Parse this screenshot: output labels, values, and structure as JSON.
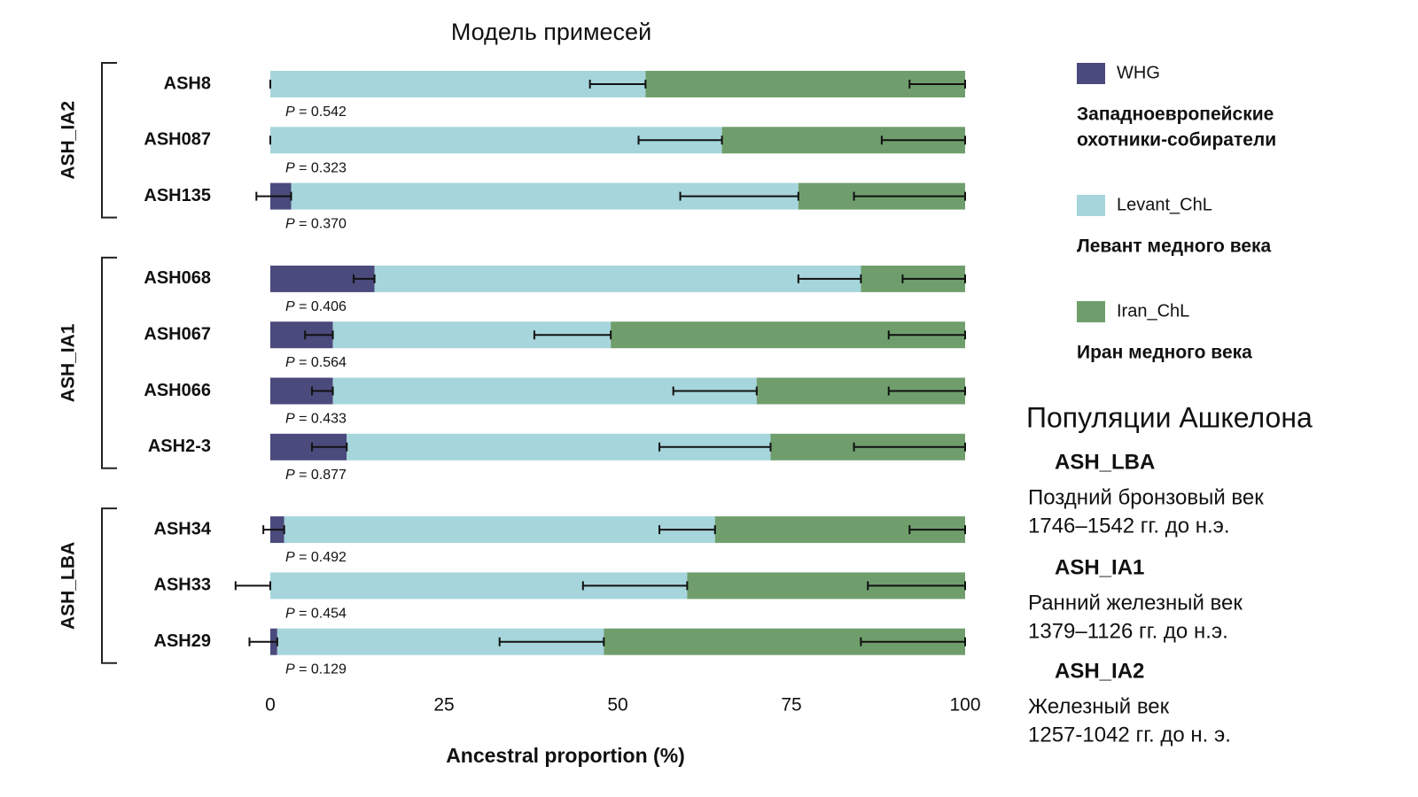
{
  "chart_data": {
    "type": "bar",
    "orientation": "horizontal",
    "stacked": true,
    "title": "Модель примесей",
    "x_label": "Ancestral proportion (%)",
    "xlim": [
      0,
      100
    ],
    "xticks": [
      0,
      25,
      50,
      75,
      100
    ],
    "grid": false,
    "groups": [
      {
        "name": "ASH_IA2",
        "color": "#1a8fc1",
        "categories": [
          "ASH8",
          "ASH087",
          "ASH135"
        ]
      },
      {
        "name": "ASH_IA1",
        "color": "#e8a020",
        "categories": [
          "ASH068",
          "ASH067",
          "ASH066",
          "ASH2-3"
        ]
      },
      {
        "name": "ASH_LBA",
        "color": "#8cc8a0",
        "categories": [
          "ASH34",
          "ASH33",
          "ASH29"
        ]
      }
    ],
    "series": [
      {
        "name": "WHG",
        "description": [
          "Западноевропейские",
          "охотники-собиратели"
        ],
        "color": "#4a4a7c",
        "values": [
          0,
          0,
          3,
          15,
          9,
          9,
          11,
          2,
          0,
          1
        ],
        "errors": [
          0,
          0,
          5,
          3,
          4,
          3,
          5,
          3,
          5,
          4
        ]
      },
      {
        "name": "Levant_ChL",
        "description": [
          "Левант медного века"
        ],
        "color": "#a6d5dc",
        "values": [
          54,
          65,
          73,
          70,
          40,
          61,
          61,
          62,
          60,
          47
        ],
        "errors": [
          8,
          12,
          17,
          9,
          11,
          12,
          16,
          8,
          15,
          15
        ]
      },
      {
        "name": "Iran_ChL",
        "description": [
          "Иран медного века"
        ],
        "color": "#6f9e6c",
        "values": [
          46,
          35,
          24,
          15,
          51,
          30,
          28,
          36,
          40,
          52
        ],
        "errors": [
          8,
          12,
          16,
          9,
          11,
          11,
          16,
          8,
          14,
          15
        ]
      }
    ],
    "p_values": [
      "P = 0.542",
      "P = 0.323",
      "P = 0.370",
      "P = 0.406",
      "P = 0.564",
      "P = 0.433",
      "P = 0.877",
      "P = 0.492",
      "P = 0.454",
      "P = 0.129"
    ]
  },
  "populations": {
    "title": "Популяции Ашкелона",
    "items": [
      {
        "name": "ASH_LBA",
        "color": "#8cc8a0",
        "description": [
          "Поздний бронзовый век",
          "1746–1542 гг. до н.э."
        ]
      },
      {
        "name": "ASH_IA1",
        "color": "#e8a020",
        "description": [
          "Ранний железный век",
          "1379–1126 гг. до н.э."
        ]
      },
      {
        "name": "ASH_IA2",
        "color": "#1a8fc1",
        "description": [
          "Железный век",
          "1257-1042 гг. до н. э."
        ]
      }
    ]
  }
}
